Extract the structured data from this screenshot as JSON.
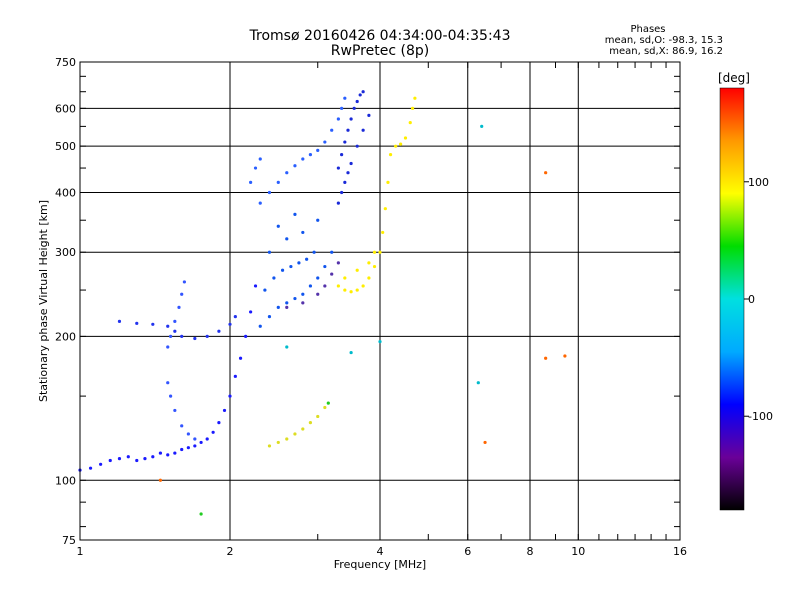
{
  "chart_data": {
    "type": "scatter",
    "title": "Tromsø 20160426 04:34:00-04:35:43",
    "subtitle": "RwPretec (8p)",
    "xlabel": "Frequency [MHz]",
    "ylabel": "Stationary phase Virtual Height [km]",
    "x_scale": "log",
    "y_scale": "log",
    "xlim": [
      1,
      16
    ],
    "ylim": [
      75,
      750
    ],
    "x_ticks": [
      1,
      2,
      4,
      6,
      8,
      10,
      16
    ],
    "y_ticks": [
      75,
      100,
      200,
      300,
      400,
      500,
      600,
      750
    ],
    "x_gridlines": [
      2,
      4,
      6,
      8,
      10
    ],
    "y_gridlines": [
      100,
      200,
      300,
      400,
      500,
      600
    ],
    "grid": true,
    "phase_info": {
      "title": "Phases",
      "line_o": "mean, sd,O: -98.3, 15.3",
      "line_x": "mean, sd,X: 86.9, 16.2"
    },
    "colorbar": {
      "label": "[deg]",
      "range": [
        -180,
        180
      ],
      "ticks": [
        100,
        0,
        -100
      ],
      "colors": [
        "#000000",
        "#6a0099",
        "#0000ff",
        "#00aaff",
        "#00e0e0",
        "#00dd00",
        "#ffff00",
        "#ff9900",
        "#ff0000"
      ]
    },
    "series": [
      {
        "color": "#1a1aff",
        "points": [
          [
            1.0,
            105
          ],
          [
            1.05,
            106
          ],
          [
            1.1,
            108
          ],
          [
            1.15,
            110
          ],
          [
            1.2,
            111
          ],
          [
            1.25,
            112
          ],
          [
            1.3,
            110
          ],
          [
            1.35,
            111
          ],
          [
            1.4,
            112
          ],
          [
            1.45,
            114
          ],
          [
            1.5,
            113
          ],
          [
            1.55,
            114
          ],
          [
            1.6,
            116
          ],
          [
            1.65,
            117
          ],
          [
            1.7,
            118
          ],
          [
            1.75,
            120
          ],
          [
            1.8,
            122
          ],
          [
            1.85,
            126
          ],
          [
            1.9,
            132
          ],
          [
            1.95,
            140
          ],
          [
            2.0,
            150
          ],
          [
            2.05,
            165
          ],
          [
            2.1,
            180
          ],
          [
            2.15,
            200
          ],
          [
            2.2,
            225
          ],
          [
            2.25,
            255
          ]
        ]
      },
      {
        "color": "#2233ee",
        "points": [
          [
            1.2,
            215
          ],
          [
            1.3,
            213
          ],
          [
            1.4,
            212
          ],
          [
            1.5,
            210
          ],
          [
            1.55,
            205
          ],
          [
            1.6,
            200
          ],
          [
            1.7,
            198
          ],
          [
            1.8,
            200
          ],
          [
            1.9,
            205
          ],
          [
            2.0,
            212
          ],
          [
            2.05,
            220
          ]
        ]
      },
      {
        "color": "#3355ff",
        "points": [
          [
            1.5,
            190
          ],
          [
            1.52,
            200
          ],
          [
            1.55,
            215
          ],
          [
            1.58,
            230
          ],
          [
            1.6,
            245
          ],
          [
            1.62,
            260
          ],
          [
            1.5,
            160
          ],
          [
            1.52,
            150
          ],
          [
            1.55,
            140
          ],
          [
            1.6,
            130
          ],
          [
            1.65,
            125
          ],
          [
            1.7,
            122
          ]
        ]
      },
      {
        "color": "#1155ee",
        "points": [
          [
            2.3,
            210
          ],
          [
            2.4,
            220
          ],
          [
            2.5,
            230
          ],
          [
            2.6,
            235
          ],
          [
            2.7,
            240
          ],
          [
            2.8,
            245
          ],
          [
            2.9,
            255
          ],
          [
            3.0,
            265
          ],
          [
            3.1,
            280
          ],
          [
            3.2,
            300
          ],
          [
            2.35,
            250
          ],
          [
            2.45,
            265
          ],
          [
            2.55,
            275
          ],
          [
            2.65,
            280
          ],
          [
            2.75,
            285
          ],
          [
            2.85,
            290
          ],
          [
            2.95,
            300
          ],
          [
            2.4,
            300
          ],
          [
            2.6,
            320
          ],
          [
            2.8,
            330
          ],
          [
            3.0,
            350
          ],
          [
            2.5,
            340
          ],
          [
            2.7,
            360
          ]
        ]
      },
      {
        "color": "#2a5fff",
        "points": [
          [
            2.3,
            380
          ],
          [
            2.4,
            400
          ],
          [
            2.5,
            420
          ],
          [
            2.6,
            440
          ],
          [
            2.7,
            455
          ],
          [
            2.8,
            470
          ],
          [
            2.9,
            480
          ],
          [
            3.0,
            490
          ],
          [
            3.1,
            510
          ],
          [
            3.2,
            540
          ],
          [
            3.3,
            570
          ],
          [
            3.35,
            600
          ],
          [
            3.4,
            630
          ],
          [
            2.2,
            420
          ],
          [
            2.25,
            450
          ],
          [
            2.3,
            470
          ]
        ]
      },
      {
        "color": "#1a2ad8",
        "points": [
          [
            3.3,
            450
          ],
          [
            3.35,
            480
          ],
          [
            3.4,
            510
          ],
          [
            3.45,
            540
          ],
          [
            3.5,
            570
          ],
          [
            3.55,
            600
          ],
          [
            3.6,
            620
          ],
          [
            3.65,
            640
          ],
          [
            3.7,
            650
          ],
          [
            3.3,
            380
          ],
          [
            3.35,
            400
          ],
          [
            3.4,
            420
          ],
          [
            3.45,
            440
          ],
          [
            3.5,
            460
          ],
          [
            3.6,
            500
          ],
          [
            3.7,
            540
          ],
          [
            3.8,
            580
          ]
        ]
      },
      {
        "color": "#5533aa",
        "points": [
          [
            2.6,
            230
          ],
          [
            2.8,
            235
          ],
          [
            3.0,
            245
          ],
          [
            3.1,
            255
          ],
          [
            3.2,
            270
          ],
          [
            3.3,
            285
          ]
        ]
      },
      {
        "color": "#ffee00",
        "points": [
          [
            3.3,
            255
          ],
          [
            3.4,
            250
          ],
          [
            3.5,
            248
          ],
          [
            3.6,
            250
          ],
          [
            3.7,
            255
          ],
          [
            3.8,
            265
          ],
          [
            3.9,
            280
          ],
          [
            4.0,
            300
          ],
          [
            4.05,
            330
          ],
          [
            4.1,
            370
          ],
          [
            4.15,
            420
          ],
          [
            4.2,
            480
          ],
          [
            4.3,
            500
          ],
          [
            4.4,
            505
          ],
          [
            4.5,
            520
          ],
          [
            4.6,
            560
          ],
          [
            4.65,
            600
          ],
          [
            4.7,
            630
          ],
          [
            3.4,
            265
          ],
          [
            3.6,
            275
          ],
          [
            3.8,
            285
          ],
          [
            3.9,
            300
          ]
        ]
      },
      {
        "color": "#dddd22",
        "points": [
          [
            2.4,
            118
          ],
          [
            2.5,
            120
          ],
          [
            2.6,
            122
          ],
          [
            2.7,
            125
          ],
          [
            2.8,
            128
          ],
          [
            2.9,
            132
          ],
          [
            3.0,
            136
          ],
          [
            3.1,
            142
          ]
        ]
      },
      {
        "color": "#ff6600",
        "points": [
          [
            1.45,
            100
          ],
          [
            8.6,
            180
          ],
          [
            9.4,
            182
          ],
          [
            8.6,
            440
          ],
          [
            6.5,
            120
          ]
        ]
      },
      {
        "color": "#00bbcc",
        "points": [
          [
            6.3,
            160
          ],
          [
            6.4,
            550
          ],
          [
            4.0,
            195
          ],
          [
            3.5,
            185
          ],
          [
            2.6,
            190
          ]
        ]
      },
      {
        "color": "#22cc22",
        "points": [
          [
            1.75,
            85
          ],
          [
            3.15,
            145
          ]
        ]
      }
    ]
  }
}
